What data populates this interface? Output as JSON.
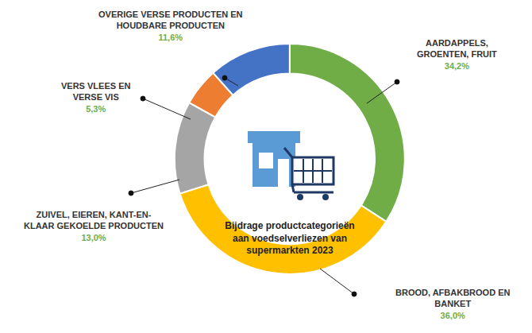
{
  "chart_data": {
    "type": "pie",
    "title": "Bijdrage productcategorieën aan voedselverliezen van supermarkten 2023",
    "categories": [
      "AARDAPPELS, GROENTEN, FRUIT",
      "BROOD, AFBAKBROOD EN BANKET",
      "ZUIVEL, EIEREN, KANT-EN-KLAAR GEKOELDE PRODUCTEN",
      "VERS VLEES EN VERSE VIS",
      "OVERIGE VERSE PRODUCTEN EN HOUDBARE PRODUCTEN"
    ],
    "values": [
      34.2,
      36.0,
      13.0,
      5.3,
      11.6
    ],
    "value_labels": [
      "34,2%",
      "36,0%",
      "13,0%",
      "5,3%",
      "11,6%"
    ],
    "colors": [
      "#70AD47",
      "#FFC000",
      "#A5A5A5",
      "#ED7D31",
      "#4472C4"
    ],
    "data_labels": true
  }
}
